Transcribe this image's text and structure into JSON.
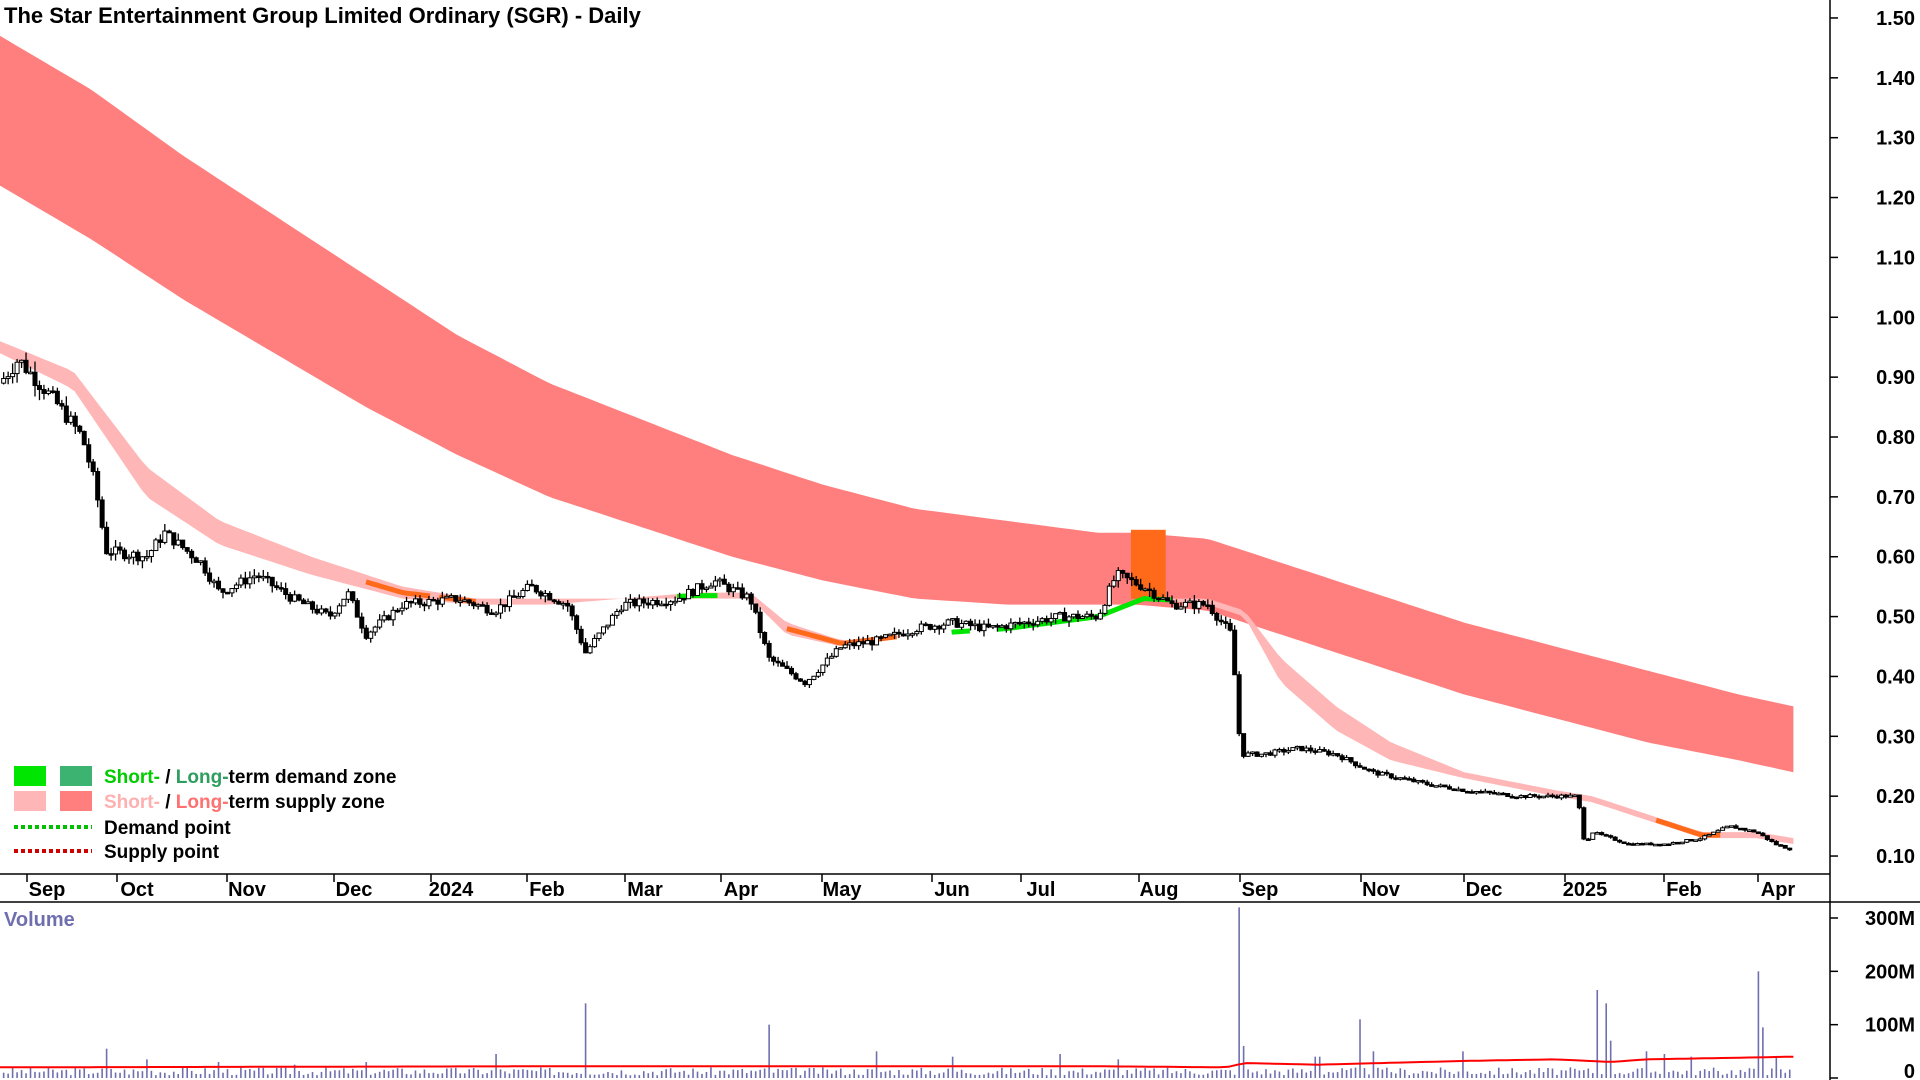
{
  "title": "The Star Entertainment Group Limited Ordinary (SGR) - Daily",
  "colors": {
    "long_supply": "#ff7f7f",
    "short_supply": "#ffb6b6",
    "short_demand": "#00e600",
    "long_demand": "#3cb371",
    "orange": "#ff6a1a",
    "candle": "#000000",
    "volume": "#6f6fb0",
    "volume_avg": "#ff0000",
    "demand_point": "#00c000",
    "supply_point": "#d00000"
  },
  "legend": {
    "row1": {
      "short": "Short-",
      "sep": " / ",
      "long": "Long-",
      "rest": "term demand zone"
    },
    "row2": {
      "short": "Short-",
      "sep": " / ",
      "long": "Long-",
      "rest": "term supply zone"
    },
    "row3": "Demand point",
    "row4": "Supply point"
  },
  "volume_label": "Volume",
  "chart_data": {
    "type": "candlestick",
    "y_ticks": [
      "1.50",
      "1.40",
      "1.30",
      "1.20",
      "1.10",
      "1.00",
      "0.90",
      "0.80",
      "0.70",
      "0.60",
      "0.50",
      "0.40",
      "0.30",
      "0.20",
      "0.10"
    ],
    "y_range": [
      0.07,
      1.53
    ],
    "x_labels": [
      "Sep",
      "Oct",
      "Nov",
      "Dec",
      "2024",
      "Feb",
      "Mar",
      "Apr",
      "May",
      "Jun",
      "Jul",
      "Aug",
      "Sep",
      "Nov",
      "Dec",
      "2025",
      "Feb",
      "Apr"
    ],
    "volume_ticks": [
      "300M",
      "200M",
      "100M",
      "0"
    ],
    "volume_range": [
      0,
      330
    ],
    "price_keypoints": [
      [
        0,
        0.89
      ],
      [
        0.01,
        0.93
      ],
      [
        0.03,
        0.86
      ],
      [
        0.045,
        0.8
      ],
      [
        0.052,
        0.72
      ],
      [
        0.058,
        0.61
      ],
      [
        0.08,
        0.6
      ],
      [
        0.09,
        0.64
      ],
      [
        0.11,
        0.59
      ],
      [
        0.12,
        0.54
      ],
      [
        0.14,
        0.57
      ],
      [
        0.16,
        0.53
      ],
      [
        0.18,
        0.5
      ],
      [
        0.19,
        0.54
      ],
      [
        0.2,
        0.47
      ],
      [
        0.22,
        0.52
      ],
      [
        0.25,
        0.53
      ],
      [
        0.27,
        0.51
      ],
      [
        0.29,
        0.55
      ],
      [
        0.31,
        0.52
      ],
      [
        0.32,
        0.44
      ],
      [
        0.34,
        0.52
      ],
      [
        0.37,
        0.53
      ],
      [
        0.39,
        0.56
      ],
      [
        0.41,
        0.53
      ],
      [
        0.42,
        0.43
      ],
      [
        0.44,
        0.39
      ],
      [
        0.46,
        0.45
      ],
      [
        0.48,
        0.46
      ],
      [
        0.5,
        0.48
      ],
      [
        0.52,
        0.49
      ],
      [
        0.54,
        0.48
      ],
      [
        0.56,
        0.49
      ],
      [
        0.58,
        0.5
      ],
      [
        0.6,
        0.5
      ],
      [
        0.61,
        0.57
      ],
      [
        0.625,
        0.55
      ],
      [
        0.64,
        0.52
      ],
      [
        0.66,
        0.52
      ],
      [
        0.673,
        0.47
      ],
      [
        0.678,
        0.27
      ],
      [
        0.69,
        0.27
      ],
      [
        0.71,
        0.28
      ],
      [
        0.73,
        0.27
      ],
      [
        0.75,
        0.24
      ],
      [
        0.78,
        0.22
      ],
      [
        0.8,
        0.21
      ],
      [
        0.83,
        0.2
      ],
      [
        0.85,
        0.2
      ],
      [
        0.862,
        0.2
      ],
      [
        0.866,
        0.12
      ],
      [
        0.87,
        0.14
      ],
      [
        0.89,
        0.12
      ],
      [
        0.91,
        0.12
      ],
      [
        0.93,
        0.13
      ],
      [
        0.945,
        0.15
      ],
      [
        0.96,
        0.14
      ],
      [
        0.97,
        0.12
      ],
      [
        0.98,
        0.11
      ]
    ],
    "short_band_keypoints": [
      [
        0,
        0.94,
        0.96
      ],
      [
        0.04,
        0.88,
        0.91
      ],
      [
        0.08,
        0.7,
        0.75
      ],
      [
        0.12,
        0.62,
        0.66
      ],
      [
        0.17,
        0.57,
        0.6
      ],
      [
        0.22,
        0.53,
        0.55
      ],
      [
        0.26,
        0.52,
        0.53
      ],
      [
        0.3,
        0.52,
        0.53
      ],
      [
        0.34,
        0.53,
        0.53
      ],
      [
        0.38,
        0.53,
        0.54
      ],
      [
        0.41,
        0.53,
        0.54
      ],
      [
        0.43,
        0.47,
        0.49
      ],
      [
        0.46,
        0.45,
        0.46
      ],
      [
        0.5,
        0.47,
        0.47
      ],
      [
        0.55,
        0.48,
        0.48
      ],
      [
        0.6,
        0.5,
        0.5
      ],
      [
        0.625,
        0.53,
        0.53
      ],
      [
        0.66,
        0.52,
        0.53
      ],
      [
        0.68,
        0.5,
        0.51
      ],
      [
        0.7,
        0.39,
        0.43
      ],
      [
        0.73,
        0.31,
        0.35
      ],
      [
        0.76,
        0.26,
        0.29
      ],
      [
        0.8,
        0.23,
        0.24
      ],
      [
        0.85,
        0.2,
        0.21
      ],
      [
        0.87,
        0.19,
        0.2
      ],
      [
        0.9,
        0.16,
        0.17
      ],
      [
        0.93,
        0.13,
        0.14
      ],
      [
        0.96,
        0.13,
        0.14
      ],
      [
        0.98,
        0.12,
        0.13
      ]
    ],
    "long_band_keypoints": [
      [
        0,
        1.22,
        1.47
      ],
      [
        0.05,
        1.13,
        1.38
      ],
      [
        0.1,
        1.03,
        1.27
      ],
      [
        0.15,
        0.94,
        1.17
      ],
      [
        0.2,
        0.85,
        1.07
      ],
      [
        0.25,
        0.77,
        0.97
      ],
      [
        0.3,
        0.7,
        0.89
      ],
      [
        0.35,
        0.65,
        0.83
      ],
      [
        0.4,
        0.6,
        0.77
      ],
      [
        0.45,
        0.56,
        0.72
      ],
      [
        0.5,
        0.53,
        0.68
      ],
      [
        0.55,
        0.52,
        0.66
      ],
      [
        0.6,
        0.52,
        0.64
      ],
      [
        0.62,
        0.52,
        0.64
      ],
      [
        0.66,
        0.51,
        0.63
      ],
      [
        0.7,
        0.47,
        0.59
      ],
      [
        0.75,
        0.42,
        0.54
      ],
      [
        0.8,
        0.37,
        0.49
      ],
      [
        0.85,
        0.33,
        0.45
      ],
      [
        0.9,
        0.29,
        0.41
      ],
      [
        0.95,
        0.26,
        0.37
      ],
      [
        0.98,
        0.24,
        0.35
      ]
    ],
    "orange_zone": {
      "x_range": [
        0.618,
        0.637
      ],
      "price_range": [
        0.53,
        0.645
      ]
    },
    "volume_spikes": [
      [
        0.058,
        55
      ],
      [
        0.08,
        35
      ],
      [
        0.12,
        30
      ],
      [
        0.16,
        25
      ],
      [
        0.2,
        30
      ],
      [
        0.27,
        45
      ],
      [
        0.32,
        140
      ],
      [
        0.42,
        100
      ],
      [
        0.48,
        50
      ],
      [
        0.52,
        40
      ],
      [
        0.58,
        45
      ],
      [
        0.61,
        35
      ],
      [
        0.678,
        320
      ],
      [
        0.68,
        60
      ],
      [
        0.72,
        40
      ],
      [
        0.743,
        110
      ],
      [
        0.75,
        50
      ],
      [
        0.8,
        50
      ],
      [
        0.872,
        165
      ],
      [
        0.877,
        140
      ],
      [
        0.88,
        70
      ],
      [
        0.9,
        50
      ],
      [
        0.91,
        45
      ],
      [
        0.925,
        40
      ],
      [
        0.96,
        200
      ],
      [
        0.963,
        95
      ],
      [
        0.97,
        40
      ]
    ],
    "volume_avg_keypoints": [
      [
        0,
        20
      ],
      [
        0.3,
        22
      ],
      [
        0.6,
        22
      ],
      [
        0.67,
        20
      ],
      [
        0.68,
        28
      ],
      [
        0.72,
        25
      ],
      [
        0.8,
        32
      ],
      [
        0.85,
        35
      ],
      [
        0.88,
        30
      ],
      [
        0.9,
        35
      ],
      [
        0.95,
        38
      ],
      [
        0.98,
        40
      ]
    ]
  }
}
